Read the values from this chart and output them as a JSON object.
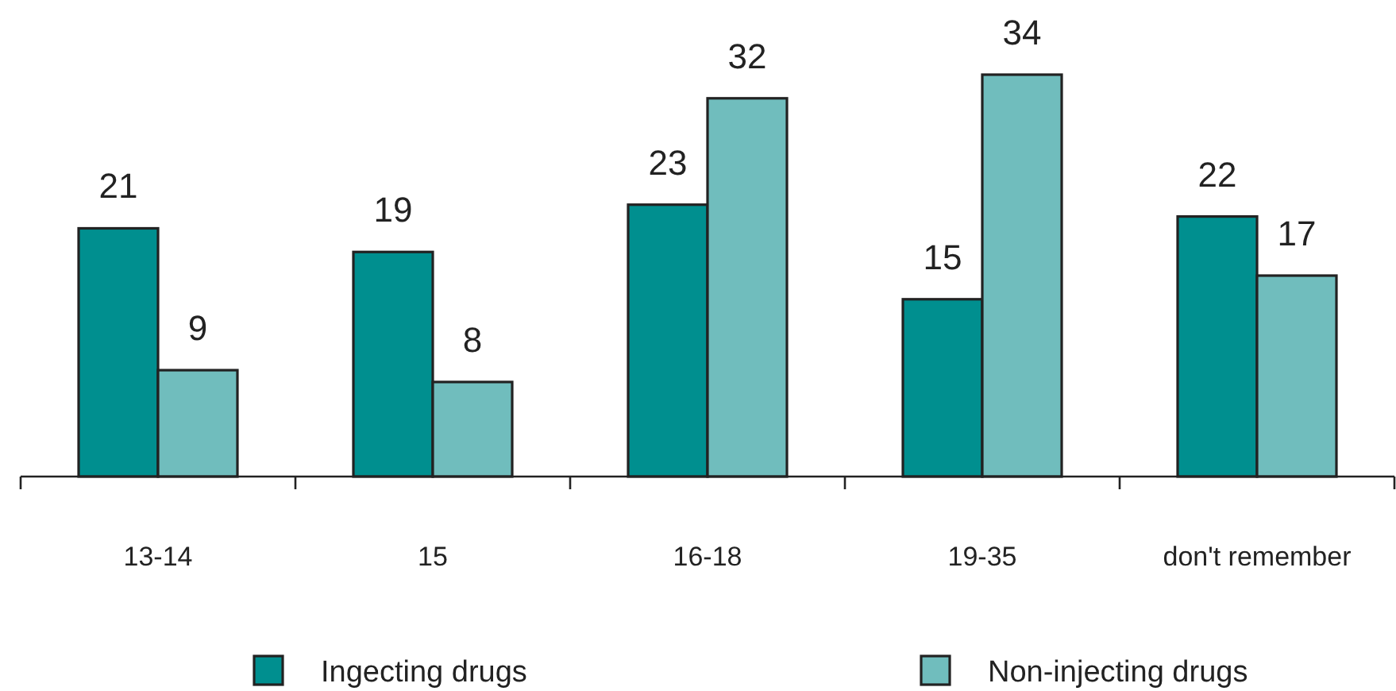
{
  "chart_data": {
    "type": "bar",
    "categories": [
      "13-14",
      "15",
      "16-18",
      "19-35",
      "don't remember"
    ],
    "series": [
      {
        "name": "Ingecting drugs",
        "color": "#008f8f",
        "values": [
          21,
          19,
          23,
          15,
          22
        ]
      },
      {
        "name": "Non-injecting drugs",
        "color": "#70bdbd",
        "values": [
          9,
          8,
          32,
          34,
          17
        ]
      }
    ],
    "data_labels": true,
    "legend": "bottom"
  }
}
